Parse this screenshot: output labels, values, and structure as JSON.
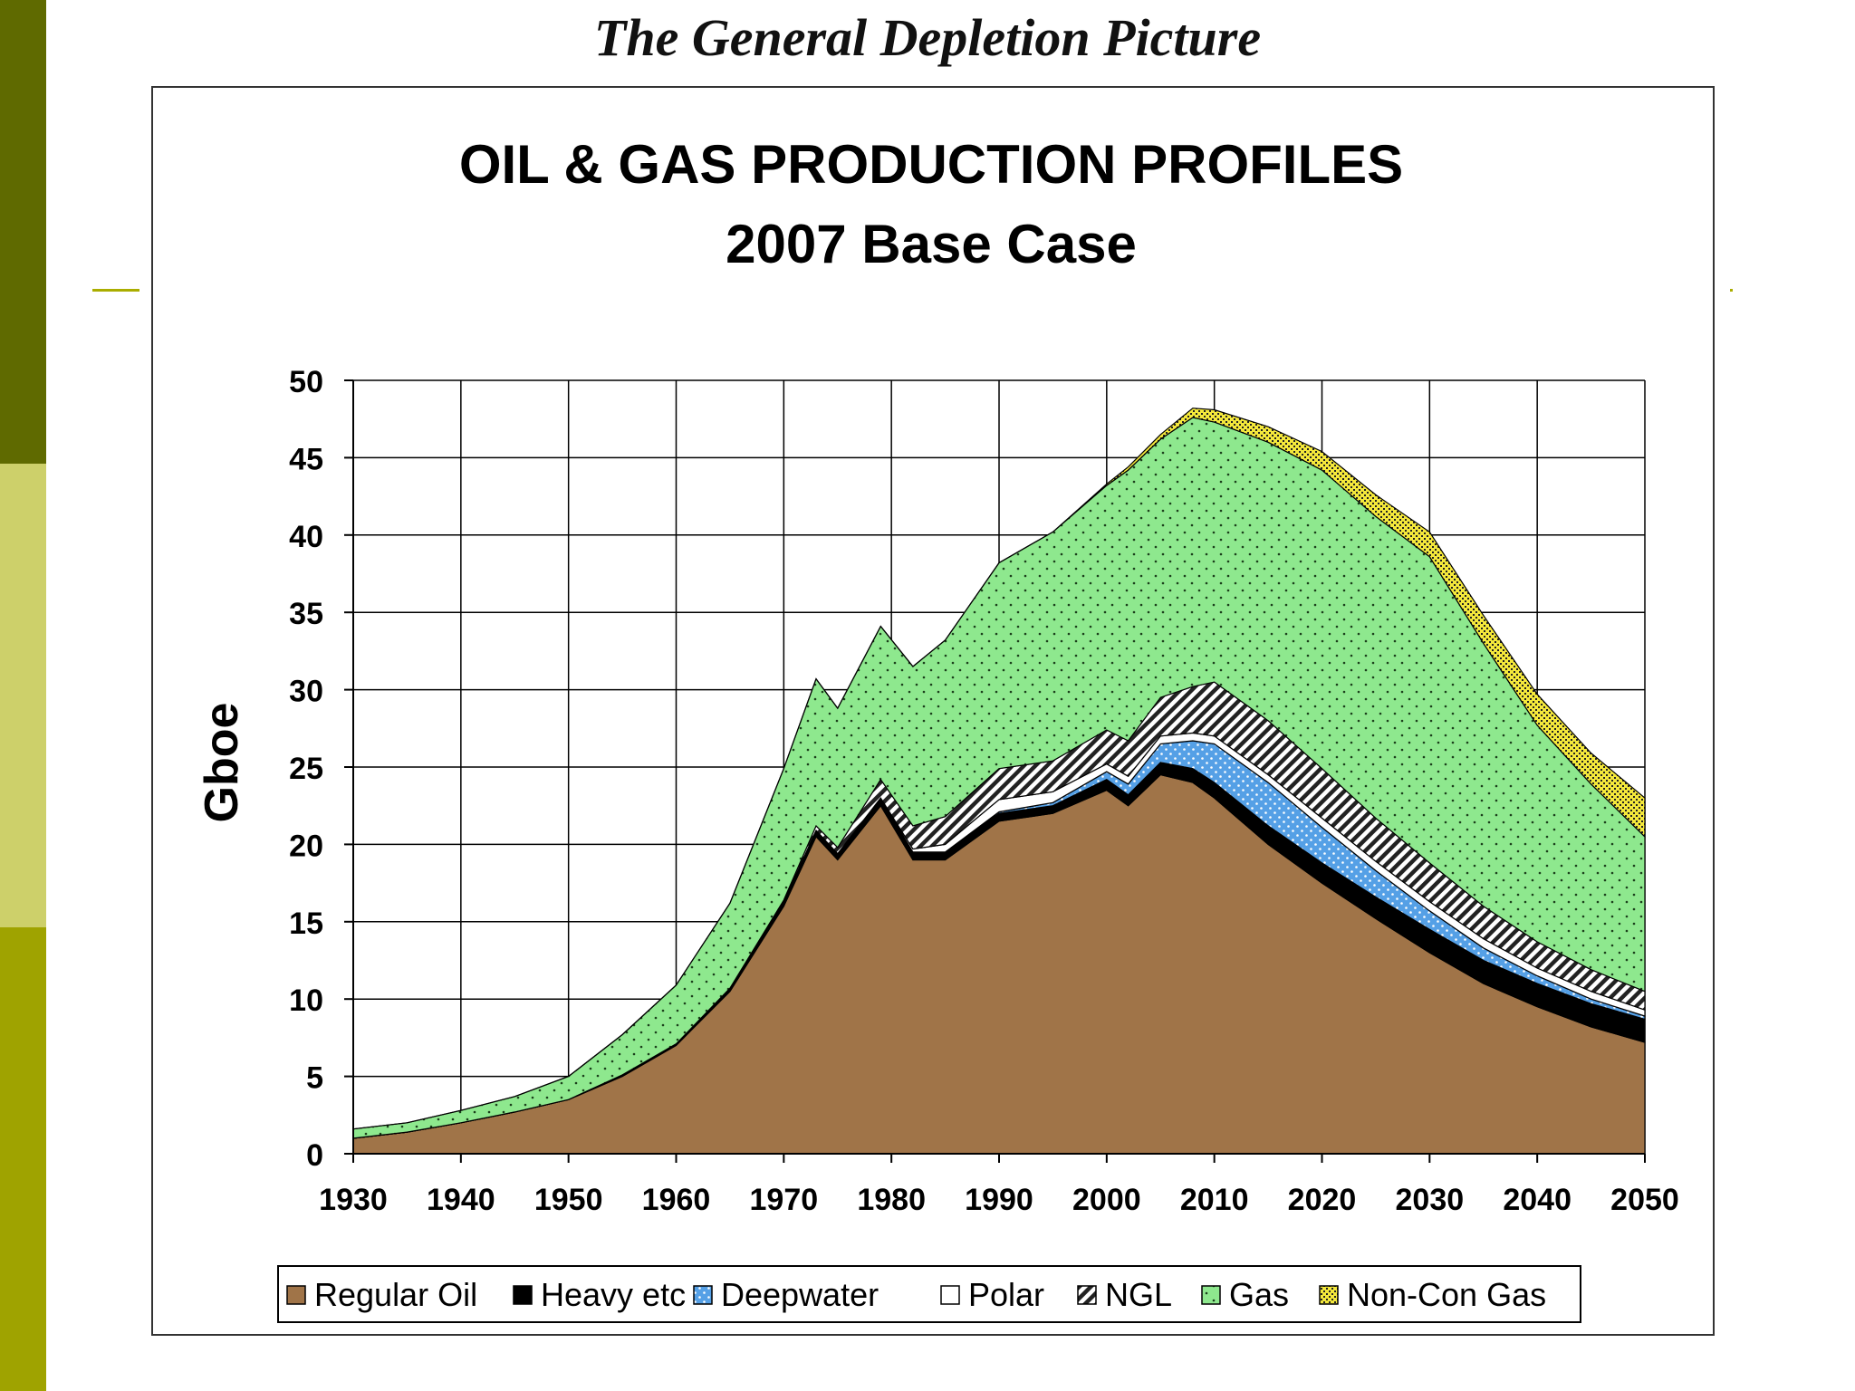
{
  "slide": {
    "title": "The General Depletion Picture",
    "colors": {
      "band_top": "#5f6a00",
      "band_mid": "#cdd06a",
      "band_bot": "#9fa300",
      "rule": "#aaad00"
    }
  },
  "chart_data": {
    "type": "area",
    "stacked": true,
    "title": "OIL & GAS PRODUCTION PROFILES",
    "subtitle": "2007 Base Case",
    "xlabel": "",
    "ylabel": "Gboe",
    "xlim": [
      1930,
      2050
    ],
    "ylim": [
      0,
      50
    ],
    "x_ticks": [
      1930,
      1940,
      1950,
      1960,
      1970,
      1980,
      1990,
      2000,
      2010,
      2020,
      2030,
      2040,
      2050
    ],
    "y_ticks": [
      0,
      5,
      10,
      15,
      20,
      25,
      30,
      35,
      40,
      45,
      50
    ],
    "grid": true,
    "legend_position": "bottom",
    "x": [
      1930,
      1935,
      1940,
      1945,
      1950,
      1955,
      1960,
      1965,
      1970,
      1973,
      1975,
      1979,
      1982,
      1985,
      1990,
      1995,
      2000,
      2002,
      2005,
      2008,
      2010,
      2015,
      2020,
      2025,
      2030,
      2035,
      2040,
      2045,
      2050
    ],
    "series": [
      {
        "name": "Regular Oil",
        "color": "#a07448",
        "pattern": "none",
        "values": [
          1.0,
          1.4,
          2.0,
          2.7,
          3.5,
          5.0,
          7.0,
          10.5,
          16.0,
          20.5,
          19.0,
          22.5,
          19.0,
          19.0,
          21.5,
          22.0,
          23.5,
          22.5,
          24.5,
          24.0,
          23.0,
          20.0,
          17.5,
          15.2,
          13.0,
          11.0,
          9.5,
          8.2,
          7.2
        ]
      },
      {
        "name": "Heavy etc",
        "color": "#000000",
        "pattern": "none",
        "values": [
          0,
          0,
          0,
          0,
          0,
          0.1,
          0.1,
          0.2,
          0.3,
          0.4,
          0.4,
          0.5,
          0.5,
          0.5,
          0.5,
          0.5,
          0.7,
          0.7,
          0.8,
          0.9,
          1.0,
          1.2,
          1.3,
          1.4,
          1.5,
          1.5,
          1.5,
          1.5,
          1.5
        ]
      },
      {
        "name": "Deepwater",
        "color": "#55a0e6",
        "pattern": "dots",
        "values": [
          0,
          0,
          0,
          0,
          0,
          0,
          0,
          0,
          0,
          0,
          0,
          0,
          0,
          0,
          0.1,
          0.2,
          0.5,
          0.7,
          1.2,
          1.8,
          2.5,
          2.8,
          2.3,
          1.7,
          1.2,
          0.8,
          0.5,
          0.3,
          0.2
        ]
      },
      {
        "name": "Polar",
        "color": "#ffffff",
        "pattern": "none",
        "values": [
          0,
          0,
          0,
          0,
          0,
          0,
          0,
          0,
          0,
          0,
          0,
          0,
          0.2,
          0.5,
          0.8,
          0.7,
          0.5,
          0.5,
          0.5,
          0.5,
          0.5,
          0.5,
          0.6,
          0.6,
          0.6,
          0.6,
          0.5,
          0.5,
          0.4
        ]
      },
      {
        "name": "NGL",
        "color": "#7f7f7f",
        "pattern": "hatch",
        "values": [
          0,
          0,
          0,
          0,
          0,
          0,
          0,
          0,
          0.1,
          0.3,
          0.4,
          1.2,
          1.5,
          1.8,
          2.0,
          2.0,
          2.2,
          2.3,
          2.5,
          3.0,
          3.5,
          3.5,
          3.2,
          2.8,
          2.5,
          2.1,
          1.7,
          1.4,
          1.2
        ]
      },
      {
        "name": "Gas",
        "color": "#8ee88e",
        "pattern": "dots",
        "values": [
          0.6,
          0.6,
          0.8,
          1.0,
          1.5,
          2.6,
          3.8,
          5.5,
          8.5,
          9.5,
          9.0,
          9.9,
          10.3,
          11.4,
          13.3,
          14.8,
          15.8,
          17.5,
          16.7,
          17.4,
          16.8,
          18.0,
          19.3,
          19.5,
          19.8,
          17.0,
          14.0,
          12.0,
          10.0
        ]
      },
      {
        "name": "Non-Con Gas",
        "color": "#f4e83b",
        "pattern": "dense",
        "values": [
          0,
          0,
          0,
          0,
          0,
          0,
          0,
          0,
          0,
          0,
          0,
          0,
          0,
          0,
          0,
          0,
          0.1,
          0.2,
          0.3,
          0.6,
          0.8,
          1.0,
          1.2,
          1.4,
          1.6,
          1.8,
          2.0,
          2.0,
          2.5
        ]
      }
    ]
  }
}
